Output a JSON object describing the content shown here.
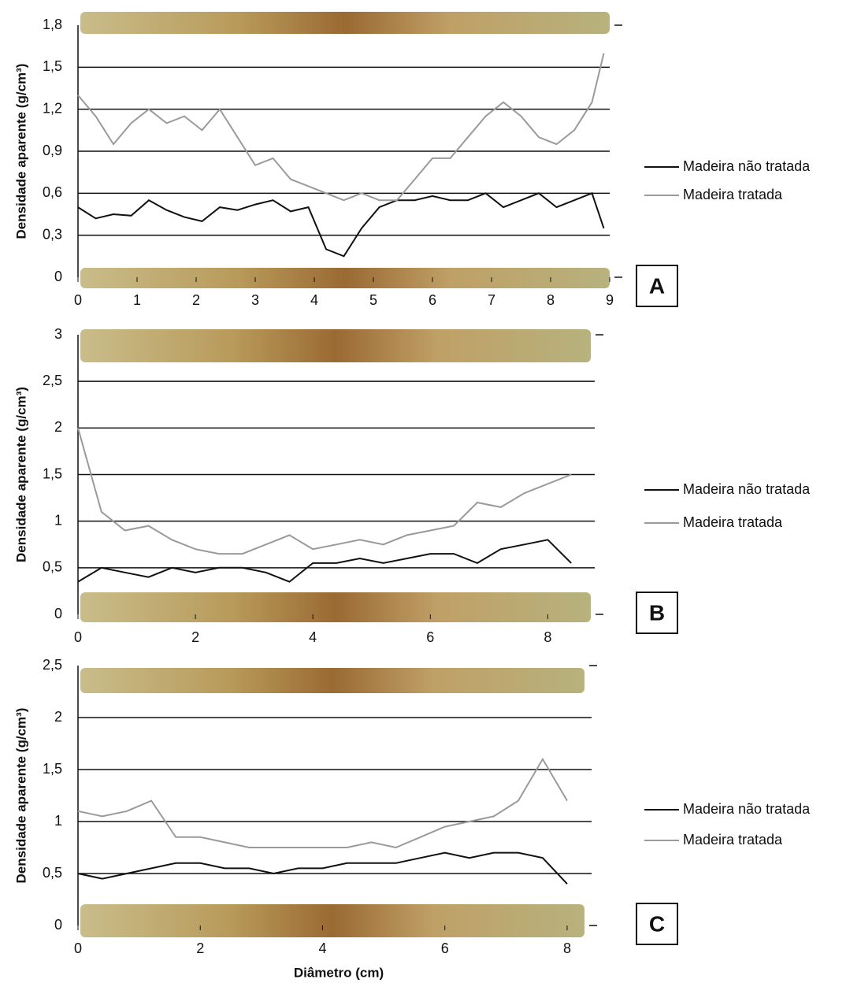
{
  "chart_data": [
    {
      "type": "line",
      "label": "A",
      "ylabel": "Densidade aparente (g/cm³)",
      "x": [
        0,
        0.3,
        0.6,
        0.9,
        1.2,
        1.5,
        1.8,
        2.1,
        2.4,
        2.7,
        3.0,
        3.3,
        3.6,
        3.9,
        4.2,
        4.5,
        4.8,
        5.1,
        5.4,
        5.7,
        6.0,
        6.3,
        6.6,
        6.9,
        7.2,
        7.5,
        7.8,
        8.1,
        8.4,
        8.7,
        8.9
      ],
      "series": [
        {
          "name": "Madeira não tratada",
          "color": "#111111",
          "values": [
            0.5,
            0.42,
            0.45,
            0.44,
            0.55,
            0.48,
            0.43,
            0.4,
            0.5,
            0.48,
            0.52,
            0.55,
            0.47,
            0.5,
            0.2,
            0.15,
            0.35,
            0.5,
            0.55,
            0.55,
            0.58,
            0.55,
            0.55,
            0.6,
            0.5,
            0.55,
            0.6,
            0.5,
            0.55,
            0.6,
            0.35
          ]
        },
        {
          "name": "Madeira tratada",
          "color": "#9a9a9a",
          "values": [
            1.3,
            1.15,
            0.95,
            1.1,
            1.2,
            1.1,
            1.15,
            1.05,
            1.2,
            1.0,
            0.8,
            0.85,
            0.7,
            0.65,
            0.6,
            0.55,
            0.6,
            0.55,
            0.55,
            0.7,
            0.85,
            0.85,
            1.0,
            1.15,
            1.25,
            1.15,
            1.0,
            0.95,
            1.05,
            1.25,
            1.6
          ]
        }
      ],
      "xlim": [
        0,
        9
      ],
      "ylim": [
        0,
        1.8
      ],
      "xticks": [
        0,
        1,
        2,
        3,
        4,
        5,
        6,
        7,
        8,
        9
      ],
      "yticks": [
        0,
        {
          "value": 0.3,
          "label": "0,3"
        },
        {
          "value": 0.6,
          "label": "0,6"
        },
        {
          "value": 0.9,
          "label": "0,9"
        },
        {
          "value": 1.2,
          "label": "1,2"
        },
        {
          "value": 1.5,
          "label": "1,5"
        },
        {
          "value": 1.8,
          "label": "1,8"
        }
      ],
      "grid": true
    },
    {
      "type": "line",
      "label": "B",
      "ylabel": "Densidade aparente (g/cm³)",
      "x": [
        0,
        0.4,
        0.8,
        1.2,
        1.6,
        2.0,
        2.4,
        2.8,
        3.2,
        3.6,
        4.0,
        4.4,
        4.8,
        5.2,
        5.6,
        6.0,
        6.4,
        6.8,
        7.2,
        7.6,
        8.0,
        8.4
      ],
      "series": [
        {
          "name": "Madeira não tratada",
          "color": "#111111",
          "values": [
            0.35,
            0.5,
            0.45,
            0.4,
            0.5,
            0.45,
            0.5,
            0.5,
            0.45,
            0.35,
            0.55,
            0.55,
            0.6,
            0.55,
            0.6,
            0.65,
            0.65,
            0.55,
            0.7,
            0.75,
            0.8,
            0.55
          ]
        },
        {
          "name": "Madeira tratada",
          "color": "#9a9a9a",
          "values": [
            2.0,
            1.1,
            0.9,
            0.95,
            0.8,
            0.7,
            0.65,
            0.65,
            0.75,
            0.85,
            0.7,
            0.75,
            0.8,
            0.75,
            0.85,
            0.9,
            0.95,
            1.2,
            1.15,
            1.3,
            1.4,
            1.5
          ]
        }
      ],
      "xlim": [
        0,
        8.8
      ],
      "ylim": [
        0,
        3
      ],
      "xticks": [
        0,
        2,
        4,
        6,
        8
      ],
      "yticks": [
        0,
        {
          "value": 0.5,
          "label": "0,5"
        },
        1,
        {
          "value": 1.5,
          "label": "1,5"
        },
        2,
        {
          "value": 2.5,
          "label": "2,5"
        },
        3
      ],
      "grid": true
    },
    {
      "type": "line",
      "label": "C",
      "ylabel": "Densidade aparente (g/cm³)",
      "xlabel": "Diâmetro (cm)",
      "x": [
        0,
        0.4,
        0.8,
        1.2,
        1.6,
        2.0,
        2.4,
        2.8,
        3.2,
        3.6,
        4.0,
        4.4,
        4.8,
        5.2,
        5.6,
        6.0,
        6.4,
        6.8,
        7.2,
        7.6,
        8.0
      ],
      "series": [
        {
          "name": "Madeira não tratada",
          "color": "#111111",
          "values": [
            0.5,
            0.45,
            0.5,
            0.55,
            0.6,
            0.6,
            0.55,
            0.55,
            0.5,
            0.55,
            0.55,
            0.6,
            0.6,
            0.6,
            0.65,
            0.7,
            0.65,
            0.7,
            0.7,
            0.65,
            0.4
          ]
        },
        {
          "name": "Madeira tratada",
          "color": "#9a9a9a",
          "values": [
            1.1,
            1.05,
            1.1,
            1.2,
            0.85,
            0.85,
            0.8,
            0.75,
            0.75,
            0.75,
            0.75,
            0.75,
            0.8,
            0.75,
            0.85,
            0.95,
            1.0,
            1.05,
            1.2,
            1.6,
            1.2
          ]
        }
      ],
      "xlim": [
        0,
        8.4
      ],
      "ylim": [
        0,
        2.5
      ],
      "xticks": [
        0,
        2,
        4,
        6,
        8
      ],
      "yticks": [
        0,
        {
          "value": 0.5,
          "label": "0,5"
        },
        1,
        {
          "value": 1.5,
          "label": "1,5"
        },
        2,
        {
          "value": 2.5,
          "label": "2,5"
        }
      ],
      "grid": true
    }
  ]
}
